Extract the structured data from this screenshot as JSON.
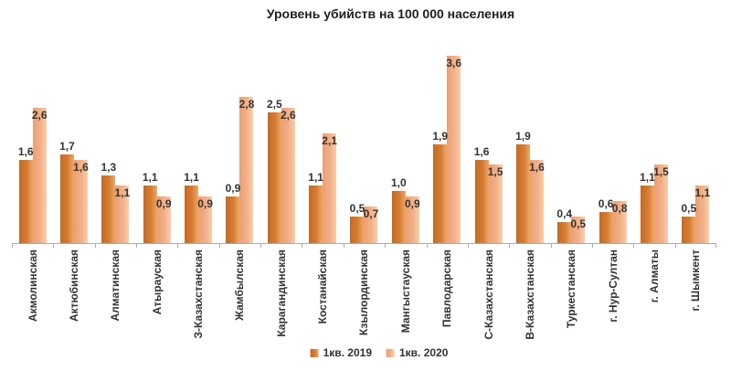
{
  "title": "Уровень убийств на 100 000 населения",
  "chart_data": {
    "type": "bar",
    "title": "Уровень убийств на 100 000 населения",
    "xlabel": "",
    "ylabel": "",
    "ylim": [
      0,
      3.8
    ],
    "grid": false,
    "legend_position": "bottom",
    "decimal_separator": ",",
    "categories": [
      "Акмолинская",
      "Актюбинская",
      "Алматинская",
      "Атырауская",
      "З-Казахстанская",
      "Жамбылская",
      "Карагандинская",
      "Костанайская",
      "Кзылординская",
      "Мангыстауская",
      "Павлодарская",
      "С-Казахстанская",
      "В-Казахстанская",
      "Туркестанская",
      "г. Нур-Султан",
      "г. Алматы",
      "г. Шымкент"
    ],
    "series": [
      {
        "name": "1кв. 2019",
        "values": [
          1.6,
          1.7,
          1.3,
          1.1,
          1.1,
          0.9,
          2.5,
          1.1,
          0.5,
          1.0,
          1.9,
          1.6,
          1.9,
          0.4,
          0.6,
          1.1,
          0.5
        ],
        "labels": [
          "1,6",
          "1,7",
          "1,3",
          "1,1",
          "1,1",
          "0,9",
          "2,5",
          "1,1",
          "0,5",
          "1,0",
          "1,9",
          "1,6",
          "1,9",
          "0,4",
          "0,6",
          "1,1",
          "0,5"
        ],
        "label_position": "outside-end",
        "color": "#d57c33",
        "gradient": [
          "#c56a22",
          "#d57c33",
          "#efa966"
        ]
      },
      {
        "name": "1кв. 2020",
        "values": [
          2.6,
          1.6,
          1.1,
          0.9,
          0.9,
          2.8,
          2.6,
          2.1,
          0.7,
          0.9,
          3.6,
          1.5,
          1.6,
          0.5,
          0.8,
          1.5,
          1.1
        ],
        "labels": [
          "2,6",
          "1,6",
          "1,1",
          "0,9",
          "0,9",
          "2,8",
          "2,6",
          "2,1",
          "0,7",
          "0,9",
          "3,6",
          "1,5",
          "1,6",
          "0,5",
          "0,8",
          "1,5",
          "1,1"
        ],
        "label_position": "inside-end",
        "color": "#f2b189",
        "gradient": [
          "#ec9f74",
          "#f2b189",
          "#f9ceab"
        ]
      }
    ]
  },
  "legend": {
    "items": [
      {
        "label": "1кв. 2019"
      },
      {
        "label": "1кв. 2020"
      }
    ]
  },
  "colors": {
    "background": "#ffffff",
    "axis": "#ababab",
    "text": "#333333",
    "title_text": "#1f1f1f"
  }
}
